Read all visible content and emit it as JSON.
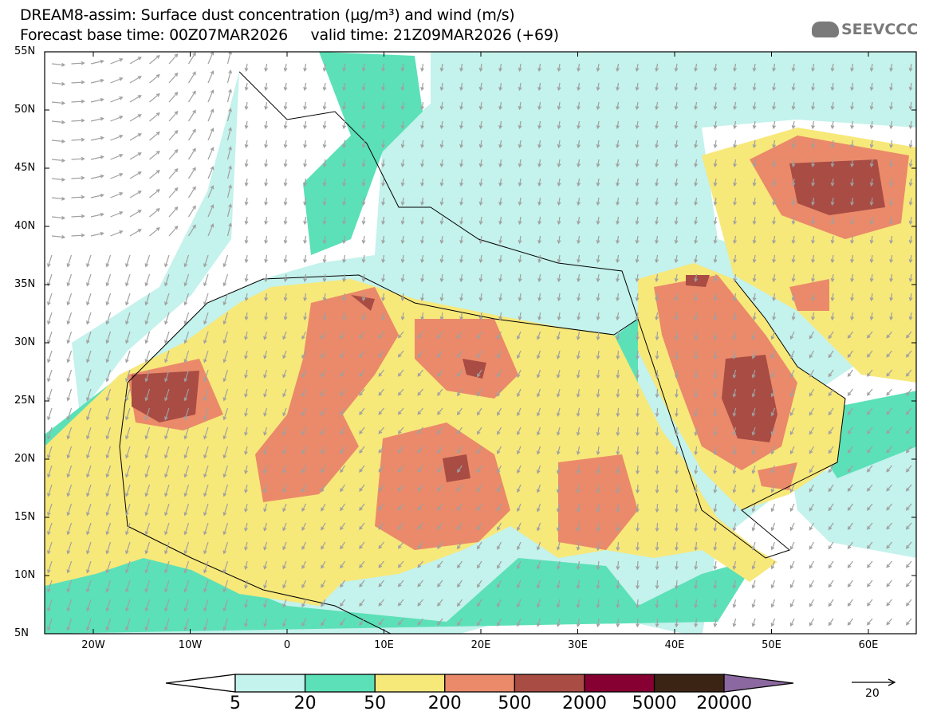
{
  "header": {
    "title": "DREAM8-assim: Surface dust concentration (µg/m³) and wind (m/s)",
    "subtitle": "Forecast base time: 00Z07MAR2026     valid time: 21Z09MAR2026 (+69)",
    "logo_text": "SEEVCCC"
  },
  "map": {
    "lat_ticks": [
      "55N",
      "50N",
      "45N",
      "40N",
      "35N",
      "30N",
      "25N",
      "20N",
      "15N",
      "10N",
      "5N"
    ],
    "lon_ticks": [
      "20W",
      "10W",
      "0",
      "10E",
      "20E",
      "30E",
      "40E",
      "50E",
      "60E"
    ]
  },
  "legend": {
    "labels": [
      "5",
      "20",
      "50",
      "200",
      "500",
      "2000",
      "5000",
      "20000"
    ],
    "colors": [
      "#ffffff",
      "#c4f2ec",
      "#5ce0b8",
      "#f7e87a",
      "#ea8a6a",
      "#a84c44",
      "#870032",
      "#3c2414",
      "#8c68a0"
    ]
  },
  "wind_reference": {
    "label": "20"
  }
}
